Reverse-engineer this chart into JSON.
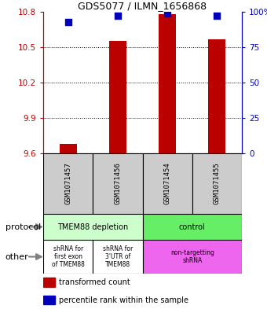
{
  "title": "GDS5077 / ILMN_1656868",
  "samples": [
    "GSM1071457",
    "GSM1071456",
    "GSM1071454",
    "GSM1071455"
  ],
  "red_values": [
    9.68,
    10.55,
    10.78,
    10.57
  ],
  "blue_values": [
    93,
    97,
    99,
    97
  ],
  "ylim_left": [
    9.6,
    10.8
  ],
  "ylim_right": [
    0,
    100
  ],
  "yticks_left": [
    9.6,
    9.9,
    10.2,
    10.5,
    10.8
  ],
  "yticks_right": [
    0,
    25,
    50,
    75,
    100
  ],
  "ytick_labels_left": [
    "9.6",
    "9.9",
    "10.2",
    "10.5",
    "10.8"
  ],
  "ytick_labels_right": [
    "0",
    "25",
    "50",
    "75",
    "100%"
  ],
  "protocol_labels": [
    [
      "TMEM88 depletion",
      0,
      2
    ],
    [
      "control",
      2,
      4
    ]
  ],
  "other_labels": [
    [
      "shRNA for\nfirst exon\nof TMEM88",
      0,
      1
    ],
    [
      "shRNA for\n3'UTR of\nTMEM88",
      1,
      2
    ],
    [
      "non-targetting\nshRNA",
      2,
      4
    ]
  ],
  "protocol_colors": [
    "#ccffcc",
    "#66ee66"
  ],
  "other_colors": [
    "#ffffff",
    "#ffffff",
    "#ee66ee"
  ],
  "bar_width": 0.35,
  "dot_size": 30,
  "red_color": "#bb0000",
  "blue_color": "#0000bb",
  "bg_color": "#ffffff",
  "sample_box_color": "#cccccc",
  "legend_items": [
    {
      "color": "#bb0000",
      "label": "transformed count"
    },
    {
      "color": "#0000bb",
      "label": "percentile rank within the sample"
    }
  ]
}
